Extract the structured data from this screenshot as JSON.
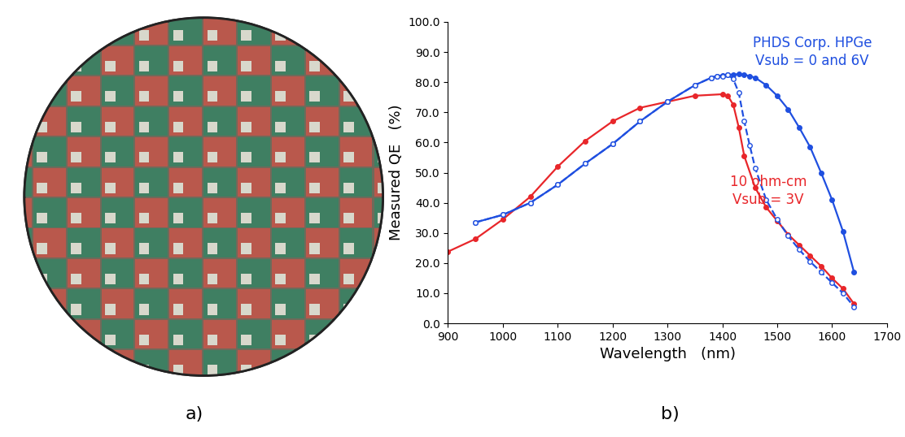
{
  "panel_labels": [
    "a)",
    "b)"
  ],
  "chart_data": {
    "type": "line",
    "x_label": "Wavelength   (nm)",
    "y_label": "Measured QE   (%)",
    "xlim": [
      900,
      1700
    ],
    "xticks": [
      900,
      1000,
      1100,
      1200,
      1300,
      1400,
      1500,
      1600,
      1700
    ],
    "ylim": [
      0,
      100
    ],
    "yticks": [
      {
        "value": 0,
        "label": "0.0"
      },
      {
        "value": 10,
        "label": "10.0"
      },
      {
        "value": 20,
        "label": "20.0"
      },
      {
        "value": 30,
        "label": "30.0"
      },
      {
        "value": 40,
        "label": "40.0"
      },
      {
        "value": 50,
        "label": "50.0"
      },
      {
        "value": 60,
        "label": "60.0"
      },
      {
        "value": 70,
        "label": "70.0"
      },
      {
        "value": 80,
        "label": "80.0"
      },
      {
        "value": 90,
        "label": "90.0"
      },
      {
        "value": 100,
        "label": "100.0"
      }
    ],
    "grid": false,
    "series": [
      {
        "color": "#e8262a",
        "line_style": "solid",
        "marker": "filled_circle",
        "x": [
          900,
          950,
          1000,
          1050,
          1100,
          1150,
          1200,
          1250,
          1300,
          1350,
          1400,
          1410,
          1420,
          1430,
          1440,
          1460,
          1480,
          1500,
          1520,
          1540,
          1560,
          1580,
          1600,
          1620,
          1640
        ],
        "values": [
          23.8,
          28,
          34.5,
          42,
          52,
          60.5,
          67,
          71.5,
          73.5,
          75.5,
          76,
          75.5,
          72.5,
          65,
          55.5,
          45,
          38.5,
          34,
          29.5,
          26,
          22.5,
          19,
          15,
          11.5,
          6.5
        ]
      },
      {
        "color": "#1f4fe0",
        "line_style": "solid",
        "marker": "filled_circle",
        "x": [
          950,
          1000,
          1050,
          1100,
          1150,
          1200,
          1250,
          1300,
          1350,
          1380,
          1390,
          1400,
          1410,
          1420,
          1430,
          1440,
          1450,
          1460,
          1480,
          1500,
          1520,
          1540,
          1560,
          1580,
          1600,
          1620,
          1640
        ],
        "values": [
          33.5,
          36,
          40,
          46,
          53,
          59.5,
          67,
          73.5,
          79,
          81.5,
          82,
          82.3,
          82.5,
          82.5,
          82.7,
          82.5,
          82,
          81.5,
          79,
          75.5,
          71,
          65,
          58.5,
          50,
          41,
          30.5,
          17
        ]
      },
      {
        "color": "#1f4fe0",
        "line_style": "dashed",
        "marker": "open_circle",
        "x": [
          950,
          1000,
          1050,
          1100,
          1150,
          1200,
          1250,
          1300,
          1350,
          1380,
          1390,
          1400,
          1410,
          1420,
          1430,
          1440,
          1450,
          1460,
          1480,
          1500,
          1520,
          1540,
          1560,
          1580,
          1600,
          1620,
          1640
        ],
        "values": [
          33.5,
          36,
          40,
          46,
          53,
          59.5,
          67,
          73.5,
          79,
          81.5,
          82,
          82,
          82.5,
          81,
          76.5,
          67,
          59,
          51.5,
          41,
          34.5,
          29,
          24.5,
          20.5,
          17,
          13.5,
          10,
          5.5
        ]
      }
    ],
    "annotations": [
      {
        "text": "PHDS Corp. HPGe",
        "color": "#1f4fe0"
      },
      {
        "text": "Vsub = 0 and 6V",
        "color": "#1f4fe0"
      },
      {
        "text": "10 ohm-cm",
        "color": "#e8262a"
      },
      {
        "text": "Vsub = 3V",
        "color": "#e8262a"
      }
    ]
  }
}
